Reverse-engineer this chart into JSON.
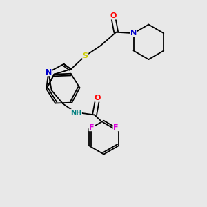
{
  "bg_color": "#e8e8e8",
  "bond_color": "#000000",
  "atom_colors": {
    "O": "#ff0000",
    "N": "#0000cc",
    "S": "#cccc00",
    "F_left": "#dd00dd",
    "F_right": "#dd00dd",
    "NH": "#008080",
    "C": "#000000"
  },
  "font_size": 8,
  "linewidth": 1.3,
  "figsize": [
    3.0,
    3.0
  ],
  "dpi": 100
}
